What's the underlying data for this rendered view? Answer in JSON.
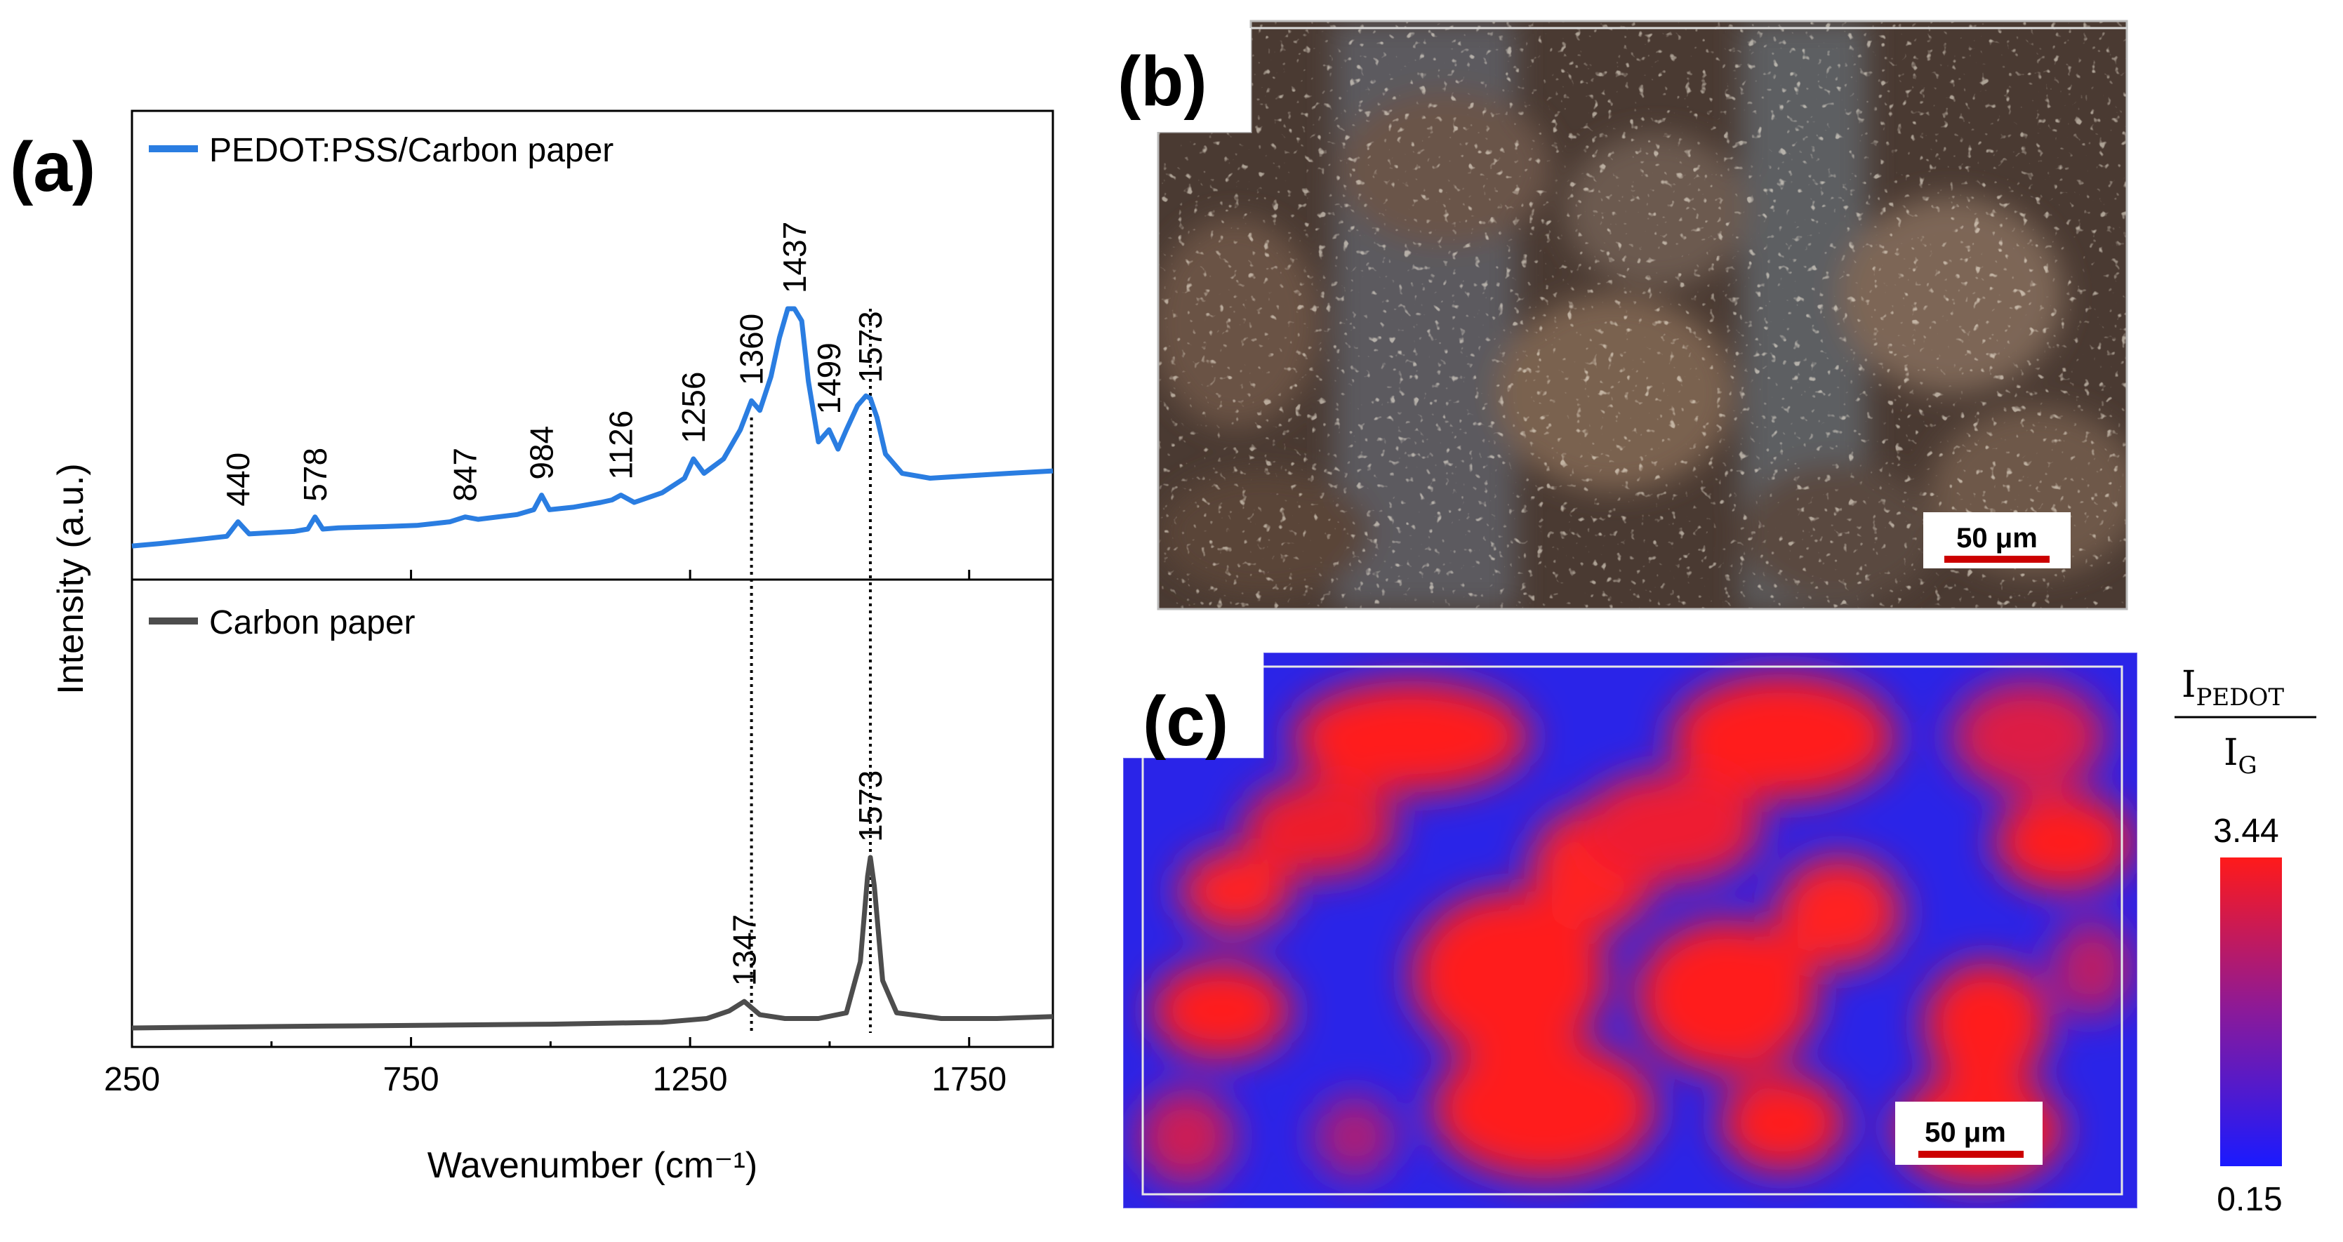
{
  "panels": {
    "a_label": "(a)",
    "b_label": "(b)",
    "c_label": "(c)"
  },
  "colors": {
    "pedot_series": "#2a7de1",
    "carbon_series": "#4d4d4d",
    "scalebar": "#cc0000",
    "colormap_high": "#ff1a1a",
    "colormap_low": "#1a1aff"
  },
  "chart_data": {
    "type": "line",
    "title": "",
    "xlabel": "Wavenumber (cm⁻¹)",
    "ylabel": "Intensity (a.u.)",
    "xlim": [
      250,
      1900
    ],
    "xticks": [
      250,
      750,
      1250,
      1750
    ],
    "series": [
      {
        "name": "PEDOT:PSS/Carbon paper",
        "color": "#2a7de1",
        "x": [
          250,
          300,
          380,
          420,
          440,
          460,
          500,
          540,
          565,
          578,
          592,
          620,
          700,
          760,
          820,
          847,
          870,
          940,
          970,
          984,
          998,
          1040,
          1090,
          1110,
          1126,
          1150,
          1200,
          1240,
          1256,
          1275,
          1310,
          1340,
          1360,
          1375,
          1395,
          1410,
          1425,
          1437,
          1450,
          1462,
          1480,
          1499,
          1515,
          1530,
          1550,
          1565,
          1573,
          1585,
          1600,
          1630,
          1680,
          1750,
          1820,
          1900
        ],
        "y": [
          0.02,
          0.03,
          0.05,
          0.06,
          0.12,
          0.07,
          0.075,
          0.08,
          0.09,
          0.14,
          0.09,
          0.095,
          0.1,
          0.105,
          0.12,
          0.14,
          0.13,
          0.15,
          0.17,
          0.23,
          0.17,
          0.18,
          0.2,
          0.21,
          0.23,
          0.2,
          0.24,
          0.3,
          0.38,
          0.32,
          0.38,
          0.5,
          0.62,
          0.58,
          0.72,
          0.88,
          1.0,
          1.0,
          0.95,
          0.7,
          0.45,
          0.5,
          0.42,
          0.5,
          0.6,
          0.64,
          0.63,
          0.55,
          0.4,
          0.32,
          0.3,
          0.31,
          0.32,
          0.33
        ],
        "peaks": [
          440,
          578,
          847,
          984,
          1126,
          1256,
          1360,
          1437,
          1499,
          1573
        ]
      },
      {
        "name": "Carbon paper",
        "color": "#4d4d4d",
        "x": [
          250,
          400,
          600,
          800,
          1000,
          1200,
          1280,
          1320,
          1347,
          1375,
          1420,
          1480,
          1530,
          1555,
          1568,
          1573,
          1580,
          1595,
          1620,
          1700,
          1800,
          1900
        ],
        "y": [
          0.0,
          0.005,
          0.01,
          0.015,
          0.02,
          0.03,
          0.05,
          0.09,
          0.14,
          0.07,
          0.05,
          0.05,
          0.08,
          0.35,
          0.8,
          0.9,
          0.75,
          0.25,
          0.08,
          0.05,
          0.05,
          0.06
        ],
        "peaks": [
          1347,
          1573
        ]
      }
    ],
    "legend": [
      "PEDOT:PSS/Carbon paper",
      "Carbon paper"
    ],
    "reference_lines": [
      1360,
      1573
    ]
  },
  "micrograph_b": {
    "scalebar_label": "50 μm"
  },
  "map_c": {
    "scalebar_label": "50 μm",
    "colorbar_numerator": "I",
    "colorbar_numerator_sub": "PEDOT",
    "colorbar_denominator": "I",
    "colorbar_denominator_sub": "G",
    "colorbar_max": "3.44",
    "colorbar_min": "0.15"
  }
}
